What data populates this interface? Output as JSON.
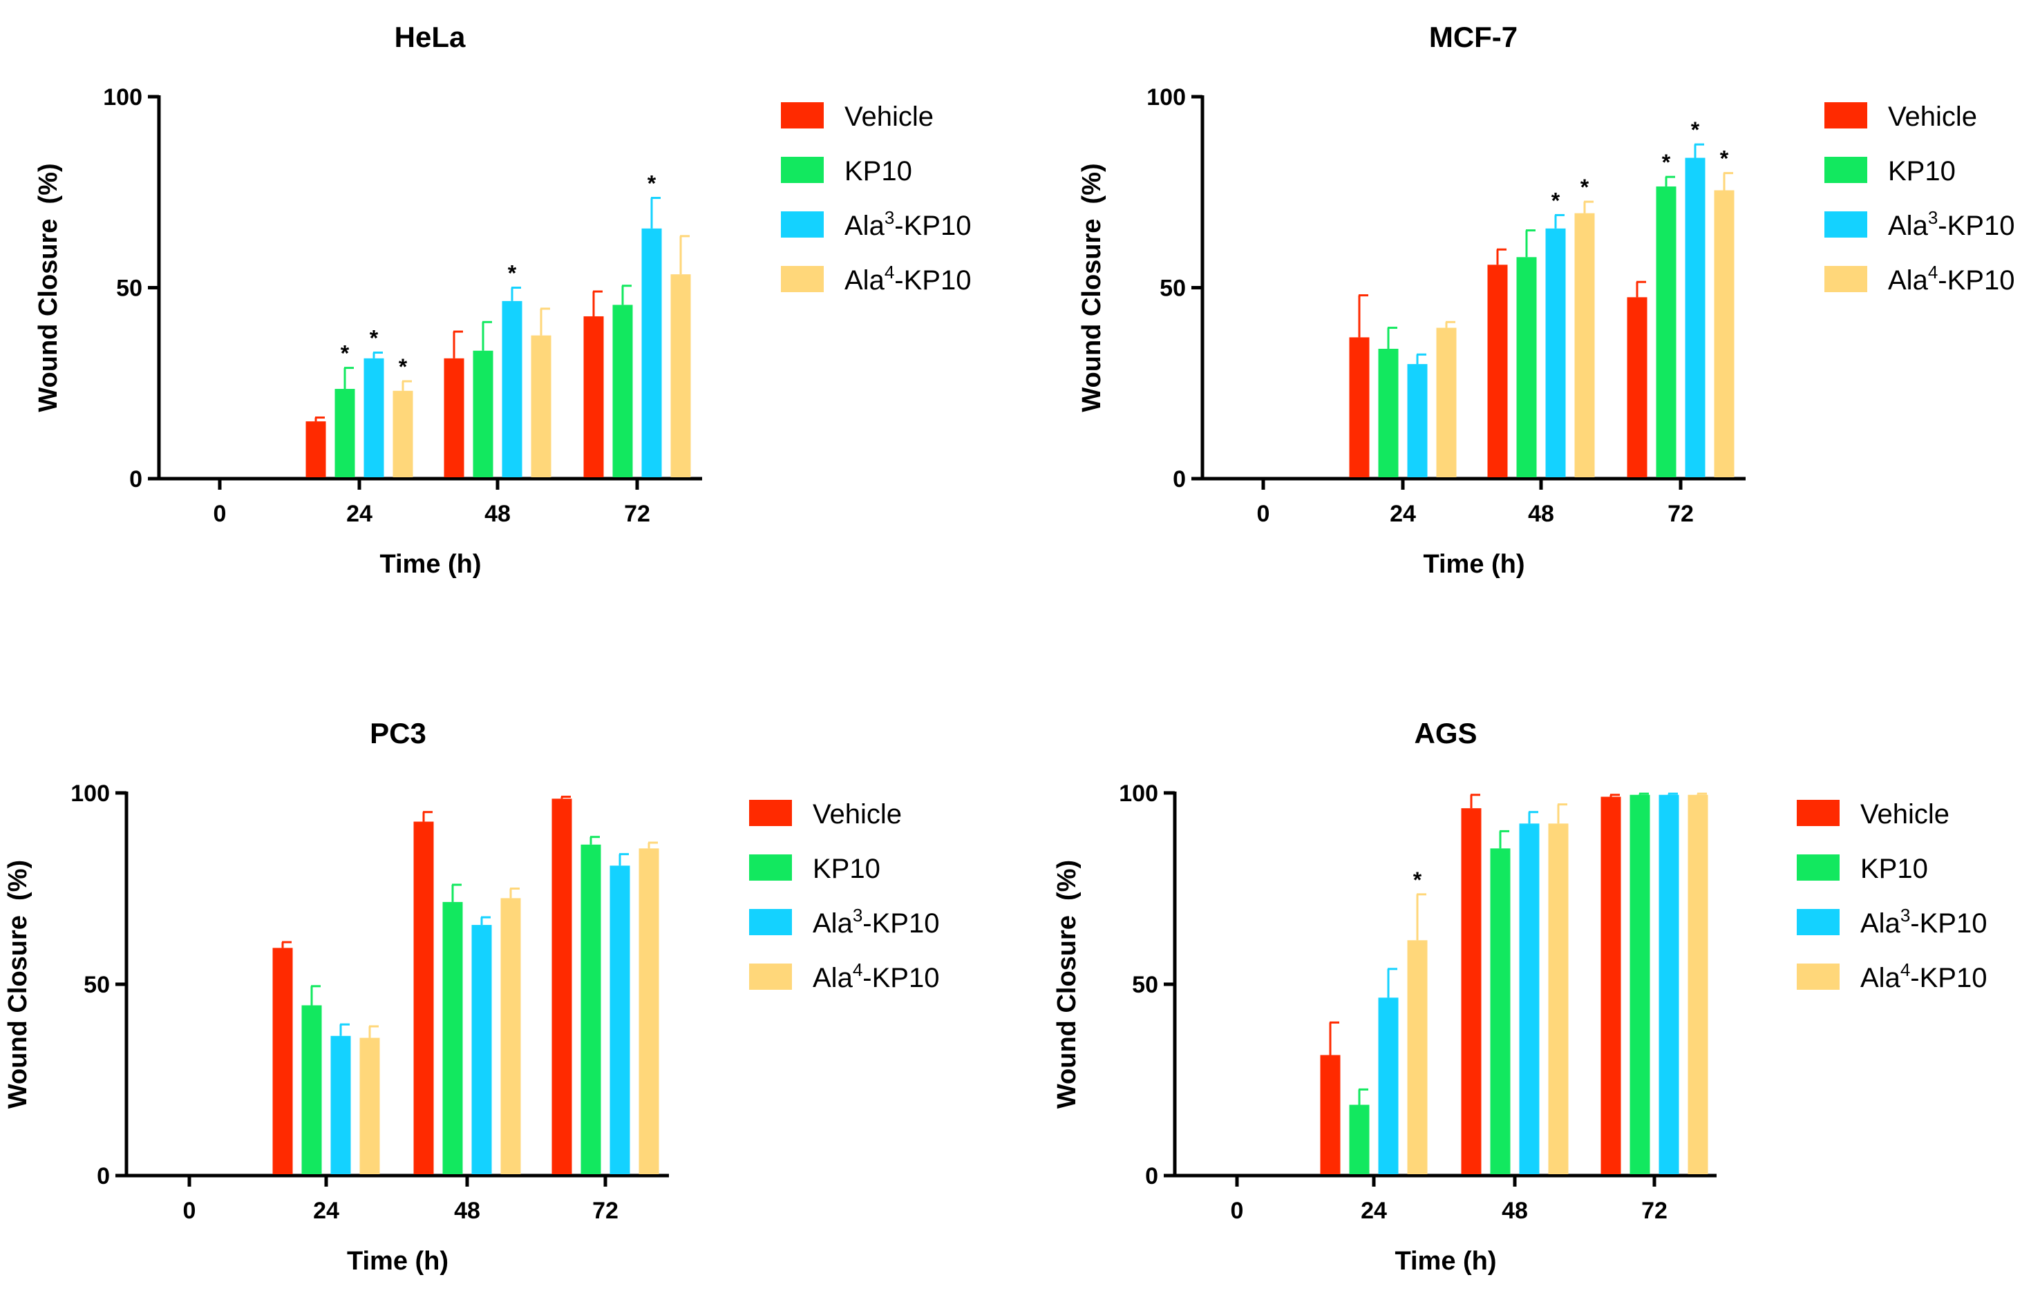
{
  "chart_data": [
    {
      "type": "bar",
      "title": "HeLa",
      "xlabel": "Time (h)",
      "ylabel": "Wound Closure  (%)",
      "ylim": [
        0,
        100
      ],
      "yticks": [
        "0",
        "50",
        "100"
      ],
      "categories": [
        "0",
        "24",
        "48",
        "72"
      ],
      "series": [
        {
          "name": "Vehicle",
          "base": "Vehicle",
          "sup": "",
          "rest": "",
          "color": "#ff2a00",
          "values": [
            0,
            15,
            31.5,
            42.5
          ],
          "errors": [
            0,
            1,
            7,
            6.5
          ],
          "sig": [
            false,
            false,
            false,
            false
          ]
        },
        {
          "name": "KP10",
          "base": "KP10",
          "sup": "",
          "rest": "",
          "color": "#12e85f",
          "values": [
            0,
            23.5,
            33.5,
            45.5
          ],
          "errors": [
            0,
            5.5,
            7.5,
            5
          ],
          "sig": [
            false,
            true,
            false,
            false
          ]
        },
        {
          "name": "Ala3-KP10",
          "base": "Ala",
          "sup": "3",
          "rest": "-KP10",
          "color": "#14d2ff",
          "values": [
            0,
            31.5,
            46.5,
            65.5
          ],
          "errors": [
            0,
            1.5,
            3.5,
            8
          ],
          "sig": [
            false,
            true,
            true,
            true
          ]
        },
        {
          "name": "Ala4-KP10",
          "base": "Ala",
          "sup": "4",
          "rest": "-KP10",
          "color": "#ffd77a",
          "values": [
            0,
            23,
            37.5,
            53.5
          ],
          "errors": [
            0,
            2.5,
            7,
            10
          ],
          "sig": [
            false,
            true,
            false,
            false
          ]
        }
      ]
    },
    {
      "type": "bar",
      "title": "MCF-7",
      "xlabel": "Time (h)",
      "ylabel": "Wound Closure  (%)",
      "ylim": [
        0,
        100
      ],
      "yticks": [
        "0",
        "50",
        "100"
      ],
      "categories": [
        "0",
        "24",
        "48",
        "72"
      ],
      "series": [
        {
          "name": "Vehicle",
          "base": "Vehicle",
          "sup": "",
          "rest": "",
          "color": "#ff2a00",
          "values": [
            0,
            37,
            56,
            47.5
          ],
          "errors": [
            0,
            11,
            4,
            4
          ],
          "sig": [
            false,
            false,
            false,
            false
          ]
        },
        {
          "name": "KP10",
          "base": "KP10",
          "sup": "",
          "rest": "",
          "color": "#12e85f",
          "values": [
            0,
            34,
            58,
            76.5
          ],
          "errors": [
            0,
            5.5,
            7,
            2.5
          ],
          "sig": [
            false,
            false,
            false,
            true
          ]
        },
        {
          "name": "Ala3-KP10",
          "base": "Ala",
          "sup": "3",
          "rest": "-KP10",
          "color": "#14d2ff",
          "values": [
            0,
            30,
            65.5,
            84
          ],
          "errors": [
            0,
            2.5,
            3.5,
            3.5
          ],
          "sig": [
            false,
            false,
            true,
            true
          ]
        },
        {
          "name": "Ala4-KP10",
          "base": "Ala",
          "sup": "4",
          "rest": "-KP10",
          "color": "#ffd77a",
          "values": [
            0,
            39.5,
            69.5,
            75.5
          ],
          "errors": [
            0,
            1.5,
            3,
            4.5
          ],
          "sig": [
            false,
            false,
            true,
            true
          ]
        }
      ]
    },
    {
      "type": "bar",
      "title": "PC3",
      "xlabel": "Time (h)",
      "ylabel": "Wound Closure  (%)",
      "ylim": [
        0,
        100
      ],
      "yticks": [
        "0",
        "50",
        "100"
      ],
      "categories": [
        "0",
        "24",
        "48",
        "72"
      ],
      "series": [
        {
          "name": "Vehicle",
          "base": "Vehicle",
          "sup": "",
          "rest": "",
          "color": "#ff2a00",
          "values": [
            0,
            59.5,
            92.5,
            98.5
          ],
          "errors": [
            0,
            1.5,
            2.5,
            0.5
          ],
          "sig": [
            false,
            false,
            false,
            false
          ]
        },
        {
          "name": "KP10",
          "base": "KP10",
          "sup": "",
          "rest": "",
          "color": "#12e85f",
          "values": [
            0,
            44.5,
            71.5,
            86.5
          ],
          "errors": [
            0,
            5,
            4.5,
            2
          ],
          "sig": [
            false,
            false,
            false,
            false
          ]
        },
        {
          "name": "Ala3-KP10",
          "base": "Ala",
          "sup": "3",
          "rest": "-KP10",
          "color": "#14d2ff",
          "values": [
            0,
            36.5,
            65.5,
            81
          ],
          "errors": [
            0,
            3,
            2,
            3
          ],
          "sig": [
            false,
            false,
            false,
            false
          ]
        },
        {
          "name": "Ala4-KP10",
          "base": "Ala",
          "sup": "4",
          "rest": "-KP10",
          "color": "#ffd77a",
          "values": [
            0,
            36,
            72.5,
            85.5
          ],
          "errors": [
            0,
            3,
            2.5,
            1.5
          ],
          "sig": [
            false,
            false,
            false,
            false
          ]
        }
      ]
    },
    {
      "type": "bar",
      "title": "AGS",
      "xlabel": "Time (h)",
      "ylabel": "Wound Closure  (%)",
      "ylim": [
        0,
        100
      ],
      "yticks": [
        "0",
        "50",
        "100"
      ],
      "categories": [
        "0",
        "24",
        "48",
        "72"
      ],
      "series": [
        {
          "name": "Vehicle",
          "base": "Vehicle",
          "sup": "",
          "rest": "",
          "color": "#ff2a00",
          "values": [
            0,
            31.5,
            96,
            99
          ],
          "errors": [
            0,
            8.5,
            3.5,
            0.5
          ],
          "sig": [
            false,
            false,
            false,
            false
          ]
        },
        {
          "name": "KP10",
          "base": "KP10",
          "sup": "",
          "rest": "",
          "color": "#12e85f",
          "values": [
            0,
            18.5,
            85.5,
            99.5
          ],
          "errors": [
            0,
            4,
            4.5,
            0.3
          ],
          "sig": [
            false,
            false,
            false,
            false
          ]
        },
        {
          "name": "Ala3-KP10",
          "base": "Ala",
          "sup": "3",
          "rest": "-KP10",
          "color": "#14d2ff",
          "values": [
            0,
            46.5,
            92,
            99.5
          ],
          "errors": [
            0,
            7.5,
            3,
            0.3
          ],
          "sig": [
            false,
            false,
            false,
            false
          ]
        },
        {
          "name": "Ala4-KP10",
          "base": "Ala",
          "sup": "4",
          "rest": "-KP10",
          "color": "#ffd77a",
          "values": [
            0,
            61.5,
            92,
            99.5
          ],
          "errors": [
            0,
            12,
            5,
            0.3
          ],
          "sig": [
            false,
            true,
            false,
            false
          ]
        }
      ]
    }
  ],
  "significance_marker": "*"
}
